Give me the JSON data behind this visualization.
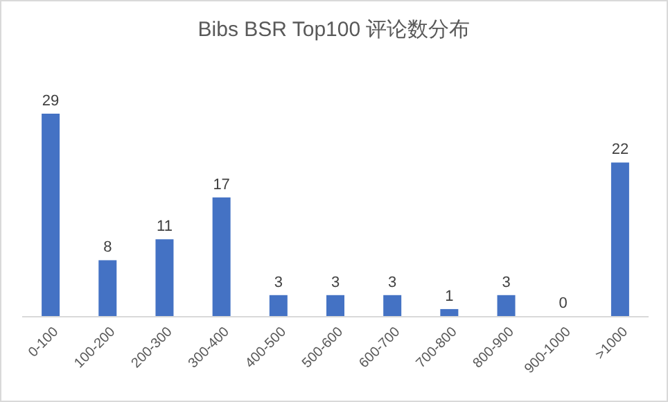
{
  "chart_data": {
    "type": "bar",
    "title": "Bibs BSR Top100 评论数分布",
    "categories": [
      "0-100",
      "100-200",
      "200-300",
      "300-400",
      "400-500",
      "500-600",
      "600-700",
      "700-800",
      "800-900",
      "900-1000",
      ">1000"
    ],
    "values": [
      29,
      8,
      11,
      17,
      3,
      3,
      3,
      1,
      3,
      0,
      22
    ],
    "color": "#4472c4",
    "data_labels": true
  }
}
